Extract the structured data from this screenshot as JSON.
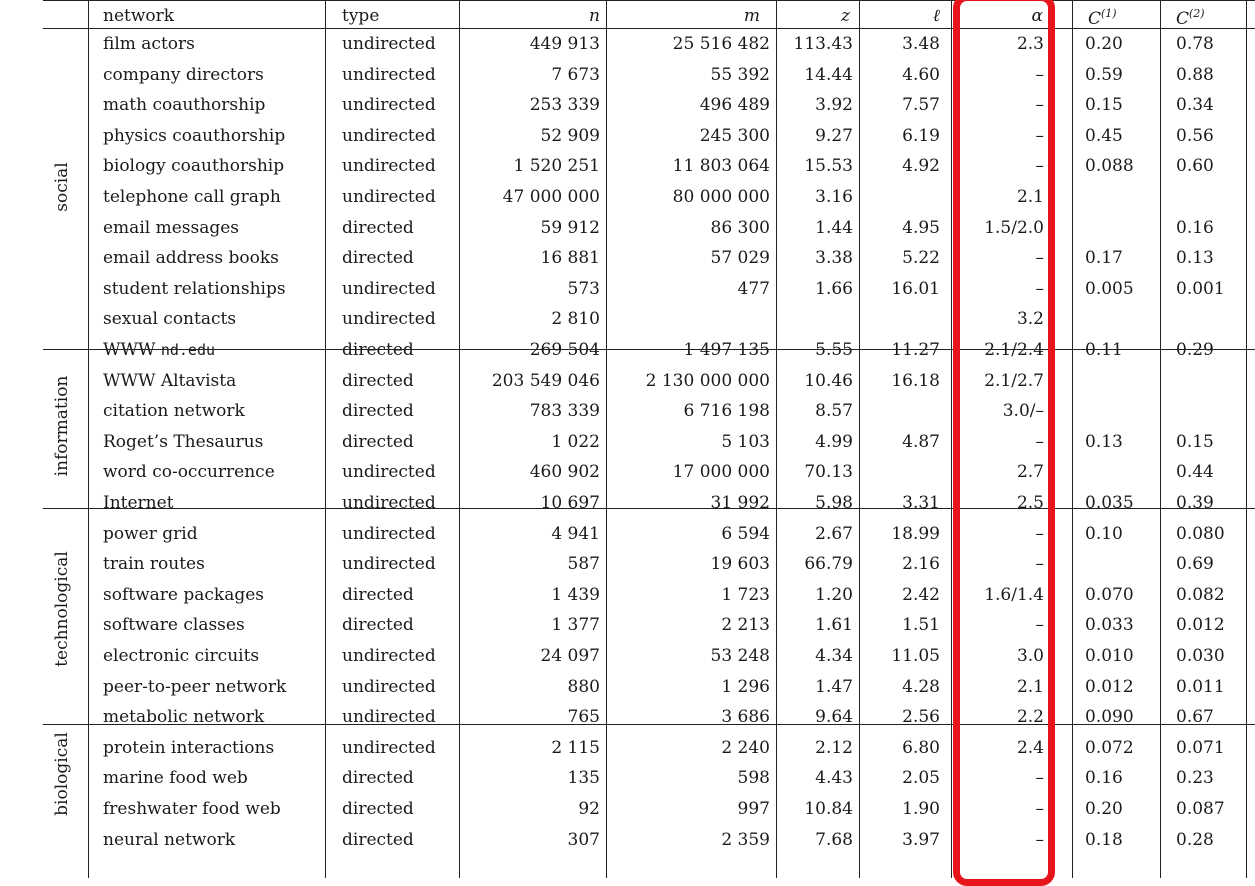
{
  "headers": {
    "network": "network",
    "type": "type",
    "n": "n",
    "m": "m",
    "z": "z",
    "l": "ℓ",
    "alpha": "α",
    "c1_base": "C",
    "c1_sup": "(1)",
    "c2_base": "C",
    "c2_sup": "(2)"
  },
  "categories": [
    "social",
    "information",
    "technological",
    "biological"
  ],
  "rows": [
    {
      "network": "film actors",
      "type": "undirected",
      "n": "449 913",
      "m": "25 516 482",
      "z": "113.43",
      "l": "3.48",
      "alpha": "2.3",
      "c1": "0.20",
      "c2": "0.78"
    },
    {
      "network": "company directors",
      "type": "undirected",
      "n": "7 673",
      "m": "55 392",
      "z": "14.44",
      "l": "4.60",
      "alpha": "–",
      "c1": "0.59",
      "c2": "0.88"
    },
    {
      "network": "math coauthorship",
      "type": "undirected",
      "n": "253 339",
      "m": "496 489",
      "z": "3.92",
      "l": "7.57",
      "alpha": "–",
      "c1": "0.15",
      "c2": "0.34"
    },
    {
      "network": "physics coauthorship",
      "type": "undirected",
      "n": "52 909",
      "m": "245 300",
      "z": "9.27",
      "l": "6.19",
      "alpha": "–",
      "c1": "0.45",
      "c2": "0.56"
    },
    {
      "network": "biology coauthorship",
      "type": "undirected",
      "n": "1 520 251",
      "m": "11 803 064",
      "z": "15.53",
      "l": "4.92",
      "alpha": "–",
      "c1": "0.088",
      "c2": "0.60"
    },
    {
      "network": "telephone call graph",
      "type": "undirected",
      "n": "47 000 000",
      "m": "80 000 000",
      "z": "3.16",
      "l": "",
      "alpha": "2.1",
      "c1": "",
      "c2": ""
    },
    {
      "network": "email messages",
      "type": "directed",
      "n": "59 912",
      "m": "86 300",
      "z": "1.44",
      "l": "4.95",
      "alpha": "1.5/2.0",
      "c1": "",
      "c2": "0.16"
    },
    {
      "network": "email address books",
      "type": "directed",
      "n": "16 881",
      "m": "57 029",
      "z": "3.38",
      "l": "5.22",
      "alpha": "–",
      "c1": "0.17",
      "c2": "0.13"
    },
    {
      "network": "student relationships",
      "type": "undirected",
      "n": "573",
      "m": "477",
      "z": "1.66",
      "l": "16.01",
      "alpha": "–",
      "c1": "0.005",
      "c2": "0.001"
    },
    {
      "network": "sexual contacts",
      "type": "undirected",
      "n": "2 810",
      "m": "",
      "z": "",
      "l": "",
      "alpha": "3.2",
      "c1": "",
      "c2": ""
    },
    {
      "network_prefix": "WWW ",
      "network_mono": "nd.edu",
      "type": "directed",
      "n": "269 504",
      "m": "1 497 135",
      "z": "5.55",
      "l": "11.27",
      "alpha": "2.1/2.4",
      "c1": "0.11",
      "c2": "0.29"
    },
    {
      "network": "WWW Altavista",
      "type": "directed",
      "n": "203 549 046",
      "m": "2 130 000 000",
      "z": "10.46",
      "l": "16.18",
      "alpha": "2.1/2.7",
      "c1": "",
      "c2": ""
    },
    {
      "network": "citation network",
      "type": "directed",
      "n": "783 339",
      "m": "6 716 198",
      "z": "8.57",
      "l": "",
      "alpha": "3.0/–",
      "c1": "",
      "c2": ""
    },
    {
      "network": "Roget’s Thesaurus",
      "type": "directed",
      "n": "1 022",
      "m": "5 103",
      "z": "4.99",
      "l": "4.87",
      "alpha": "–",
      "c1": "0.13",
      "c2": "0.15"
    },
    {
      "network": "word co-occurrence",
      "type": "undirected",
      "n": "460 902",
      "m": "17 000 000",
      "z": "70.13",
      "l": "",
      "alpha": "2.7",
      "c1": "",
      "c2": "0.44"
    },
    {
      "network": "Internet",
      "type": "undirected",
      "n": "10 697",
      "m": "31 992",
      "z": "5.98",
      "l": "3.31",
      "alpha": "2.5",
      "c1": "0.035",
      "c2": "0.39"
    },
    {
      "network": "power grid",
      "type": "undirected",
      "n": "4 941",
      "m": "6 594",
      "z": "2.67",
      "l": "18.99",
      "alpha": "–",
      "c1": "0.10",
      "c2": "0.080"
    },
    {
      "network": "train routes",
      "type": "undirected",
      "n": "587",
      "m": "19 603",
      "z": "66.79",
      "l": "2.16",
      "alpha": "–",
      "c1": "",
      "c2": "0.69"
    },
    {
      "network": "software packages",
      "type": "directed",
      "n": "1 439",
      "m": "1 723",
      "z": "1.20",
      "l": "2.42",
      "alpha": "1.6/1.4",
      "c1": "0.070",
      "c2": "0.082"
    },
    {
      "network": "software classes",
      "type": "directed",
      "n": "1 377",
      "m": "2 213",
      "z": "1.61",
      "l": "1.51",
      "alpha": "–",
      "c1": "0.033",
      "c2": "0.012"
    },
    {
      "network": "electronic circuits",
      "type": "undirected",
      "n": "24 097",
      "m": "53 248",
      "z": "4.34",
      "l": "11.05",
      "alpha": "3.0",
      "c1": "0.010",
      "c2": "0.030"
    },
    {
      "network": "peer-to-peer network",
      "type": "undirected",
      "n": "880",
      "m": "1 296",
      "z": "1.47",
      "l": "4.28",
      "alpha": "2.1",
      "c1": "0.012",
      "c2": "0.011"
    },
    {
      "network": "metabolic network",
      "type": "undirected",
      "n": "765",
      "m": "3 686",
      "z": "9.64",
      "l": "2.56",
      "alpha": "2.2",
      "c1": "0.090",
      "c2": "0.67"
    },
    {
      "network": "protein interactions",
      "type": "undirected",
      "n": "2 115",
      "m": "2 240",
      "z": "2.12",
      "l": "6.80",
      "alpha": "2.4",
      "c1": "0.072",
      "c2": "0.071"
    },
    {
      "network": "marine food web",
      "type": "directed",
      "n": "135",
      "m": "598",
      "z": "4.43",
      "l": "2.05",
      "alpha": "–",
      "c1": "0.16",
      "c2": "0.23"
    },
    {
      "network": "freshwater food web",
      "type": "directed",
      "n": "92",
      "m": "997",
      "z": "10.84",
      "l": "1.90",
      "alpha": "–",
      "c1": "0.20",
      "c2": "0.087"
    },
    {
      "network": "neural network",
      "type": "directed",
      "n": "307",
      "m": "2 359",
      "z": "7.68",
      "l": "3.97",
      "alpha": "–",
      "c1": "0.18",
      "c2": "0.28"
    }
  ]
}
